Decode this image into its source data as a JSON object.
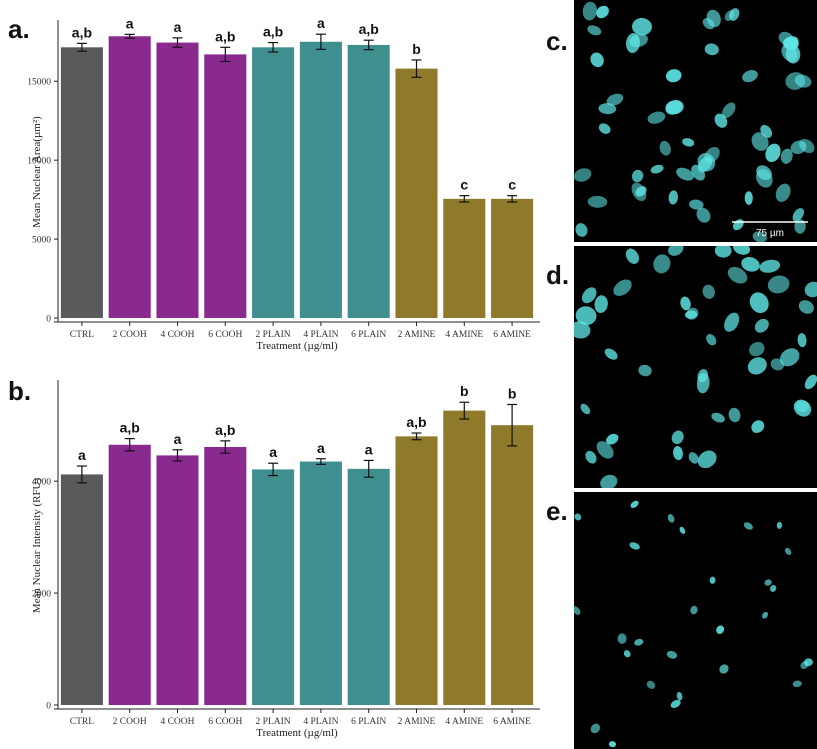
{
  "panels": {
    "a": "a.",
    "b": "b.",
    "c": "c.",
    "d": "d.",
    "e": "e."
  },
  "scale_bar": "75 µm",
  "colors": {
    "ctrl": "#5a5a5a",
    "cooh": "#8b2a8e",
    "plain": "#3f8f8f",
    "amine": "#8e7a2a",
    "nuclei": "#5fe6e6"
  },
  "chart_data": [
    {
      "type": "bar",
      "xlabel": "Treatment (µg/ml)",
      "ylabel": "Mean Nuclear Area(µm²)",
      "ylim": [
        0,
        18500
      ],
      "yticks": [
        0,
        5000,
        10000,
        15000
      ],
      "grid": false,
      "categories": [
        "CTRL",
        "2 COOH",
        "4 COOH",
        "6 COOH",
        "2 PLAIN",
        "4 PLAIN",
        "6 PLAIN",
        "2 AMINE",
        "4 AMINE",
        "6 AMINE"
      ],
      "groups": [
        "ctrl",
        "cooh",
        "cooh",
        "cooh",
        "plain",
        "plain",
        "plain",
        "amine",
        "amine",
        "amine"
      ],
      "values": [
        17150,
        17850,
        17450,
        16700,
        17150,
        17500,
        17300,
        15800,
        7550,
        7550
      ],
      "errors": [
        250,
        120,
        300,
        450,
        300,
        480,
        300,
        550,
        200,
        200
      ],
      "labels": [
        "a,b",
        "a",
        "a",
        "a,b",
        "a,b",
        "a",
        "a,b",
        "b",
        "c",
        "c"
      ]
    },
    {
      "type": "bar",
      "xlabel": "Treatment (µg/ml)",
      "ylabel": "Mean Nuclear Intensity (RFU)",
      "ylim": [
        0,
        5700
      ],
      "yticks": [
        0,
        2000,
        4000
      ],
      "grid": false,
      "categories": [
        "CTRL",
        "2 COOH",
        "4 COOH",
        "6 COOH",
        "2 PLAIN",
        "4 PLAIN",
        "6 PLAIN",
        "2 AMINE",
        "4 AMINE",
        "6 AMINE"
      ],
      "groups": [
        "ctrl",
        "cooh",
        "cooh",
        "cooh",
        "plain",
        "plain",
        "plain",
        "amine",
        "amine",
        "amine"
      ],
      "values": [
        4120,
        4650,
        4460,
        4610,
        4210,
        4350,
        4220,
        4800,
        5260,
        5000
      ],
      "errors": [
        150,
        110,
        100,
        110,
        110,
        50,
        150,
        60,
        150,
        370
      ],
      "labels": [
        "a",
        "a,b",
        "a",
        "a,b",
        "a",
        "a",
        "a",
        "a,b",
        "b",
        "b"
      ]
    }
  ]
}
